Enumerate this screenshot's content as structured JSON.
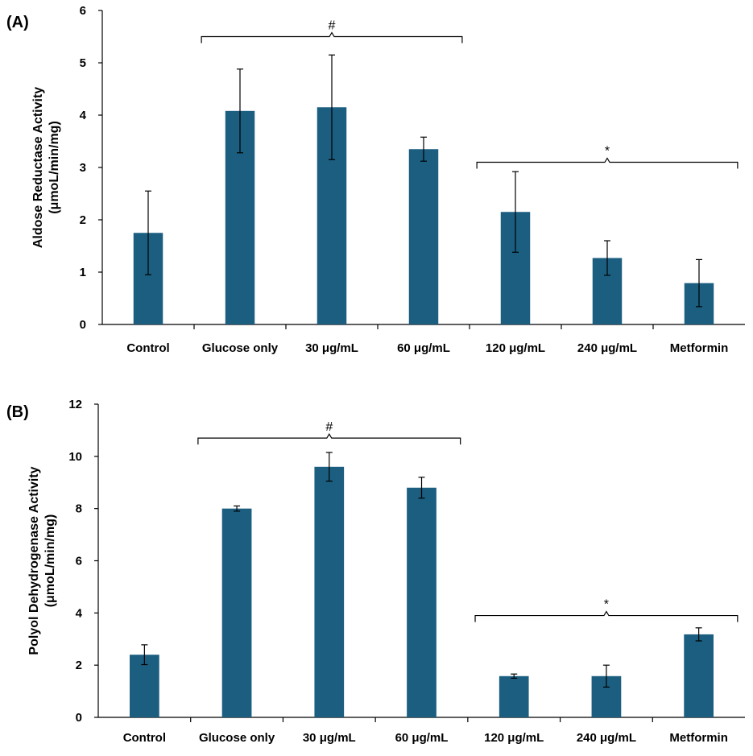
{
  "chart_data": [
    {
      "type": "bar",
      "panel_label": "(A)",
      "ylabel_line1": "Aldose Reductase Activity",
      "ylabel_line2": "(μmoL/min/mg)",
      "categories": [
        "Control",
        "Glucose only",
        "30 μg/mL",
        "60 μg/mL",
        "120  μg/mL",
        "240 μg/mL",
        "Metformin"
      ],
      "values": [
        1.75,
        4.08,
        4.15,
        3.35,
        2.15,
        1.27,
        0.79
      ],
      "errors": [
        0.8,
        0.8,
        1.0,
        0.23,
        0.77,
        0.33,
        0.45
      ],
      "ylim": [
        0,
        6
      ],
      "yticks": [
        "0",
        "1",
        "2",
        "3",
        "4",
        "5",
        "6"
      ],
      "bar_color": "#1b5e80",
      "significance": [
        {
          "symbol": "#",
          "from": 1,
          "to": 3,
          "level": 5.5
        },
        {
          "symbol": "*",
          "from": 4,
          "to": 6,
          "level": 3.1
        }
      ]
    },
    {
      "type": "bar",
      "panel_label": "(B)",
      "ylabel_line1": "Polyol Dehydrogenase Activity",
      "ylabel_line2": "(μmoL/min/mg)",
      "categories": [
        "Control",
        "Glucose only",
        "30 μg/mL",
        "60 μg/mL",
        "120  μg/mL",
        "240 μg/mL",
        "Metformin"
      ],
      "values": [
        2.4,
        8.0,
        9.6,
        8.8,
        1.58,
        1.58,
        3.18
      ],
      "errors": [
        0.38,
        0.1,
        0.55,
        0.4,
        0.08,
        0.42,
        0.25
      ],
      "ylim": [
        0,
        12
      ],
      "yticks": [
        "0",
        "2",
        "4",
        "6",
        "8",
        "10",
        "12"
      ],
      "bar_color": "#1b5e80",
      "significance": [
        {
          "symbol": "#",
          "from": 1,
          "to": 3,
          "level": 10.7
        },
        {
          "symbol": "*",
          "from": 4,
          "to": 6,
          "level": 3.9
        }
      ]
    }
  ]
}
